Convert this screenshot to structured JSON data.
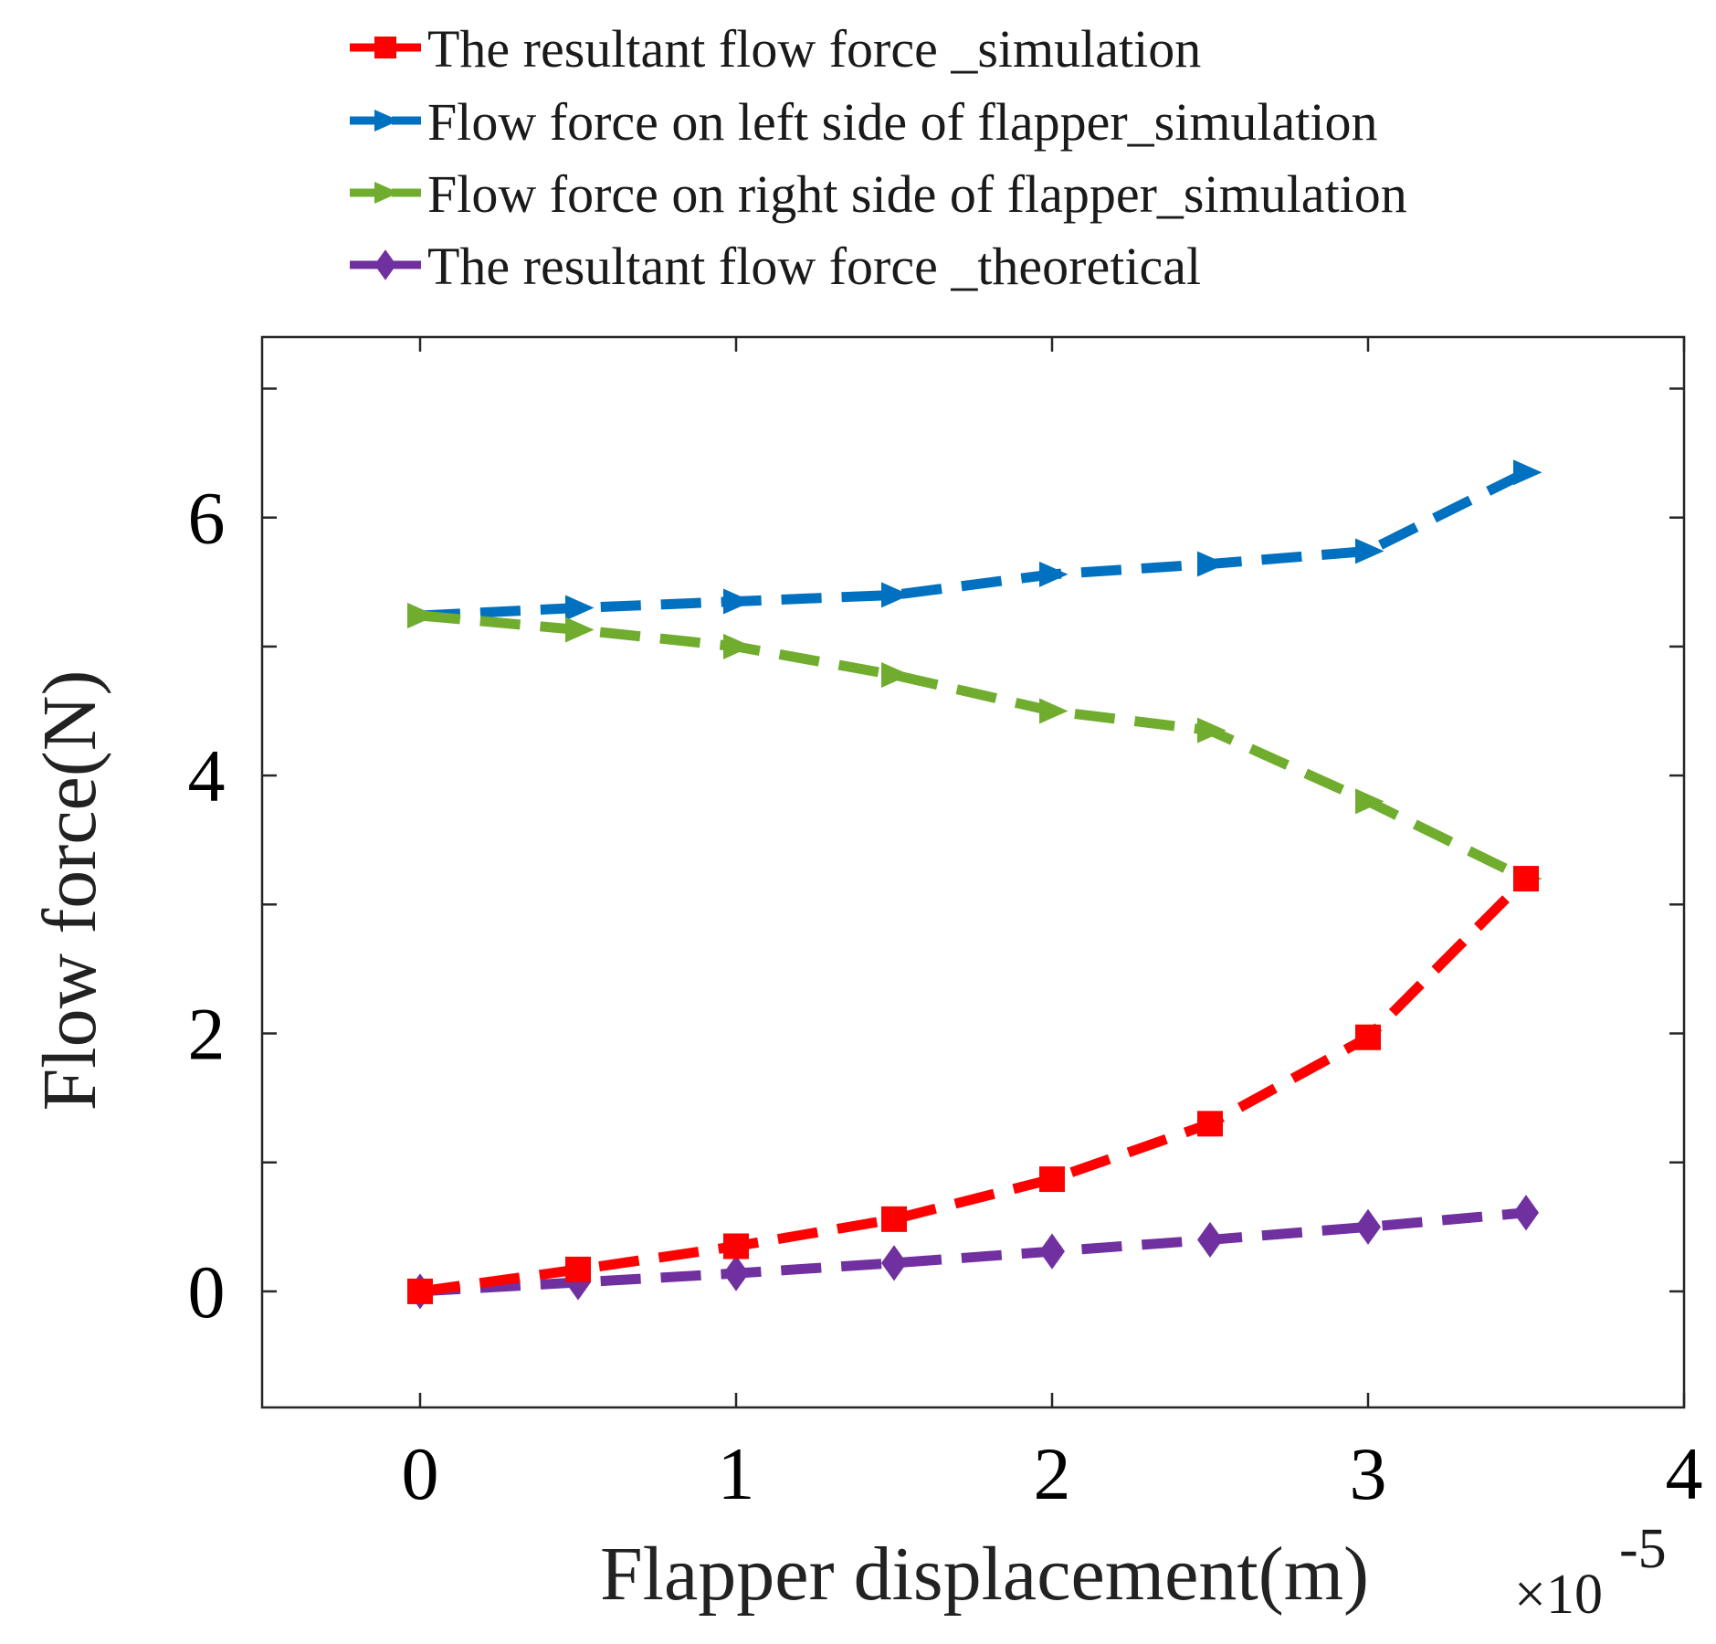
{
  "chart_data": {
    "type": "line",
    "title": "",
    "xlabel": "Flapper displacement(m)",
    "ylabel": "Flow force(N)",
    "x_multiplier_label": "×10",
    "x_multiplier_exponent": "-5",
    "xlim": [
      -0.5,
      4
    ],
    "ylim": [
      -0.9,
      7.4
    ],
    "xticks": [
      0,
      1,
      2,
      3,
      4
    ],
    "xtick_labels": [
      "0",
      "1",
      "2",
      "3",
      "4"
    ],
    "yticks": [
      0,
      2,
      4,
      6
    ],
    "ytick_labels": [
      "0",
      "2",
      "4",
      "6"
    ],
    "yminor_ticks": [
      1,
      3,
      5,
      7
    ],
    "x": [
      0,
      0.5,
      1,
      1.5,
      2,
      2.5,
      3,
      3.5
    ],
    "legend_position": "top",
    "series": [
      {
        "name": "The resultant flow force _simulation",
        "color": "#ff0000",
        "marker": "square",
        "values": [
          0,
          0.17,
          0.35,
          0.56,
          0.87,
          1.3,
          1.97,
          3.2
        ]
      },
      {
        "name": "Flow force on left side of flapper_simulation",
        "color": "#0070c0",
        "marker": "triangle-right",
        "values": [
          5.24,
          5.3,
          5.35,
          5.4,
          5.56,
          5.64,
          5.74,
          6.35
        ]
      },
      {
        "name": "Flow force on right side of flapper_simulation",
        "color": "#70ad2f",
        "marker": "triangle-right",
        "values": [
          5.24,
          5.13,
          5.0,
          4.78,
          4.5,
          4.35,
          3.8,
          3.2
        ]
      },
      {
        "name": "The resultant flow force _theoretical",
        "color": "#7030a0",
        "marker": "diamond",
        "values": [
          0,
          0.07,
          0.14,
          0.22,
          0.31,
          0.4,
          0.5,
          0.61
        ]
      }
    ]
  }
}
